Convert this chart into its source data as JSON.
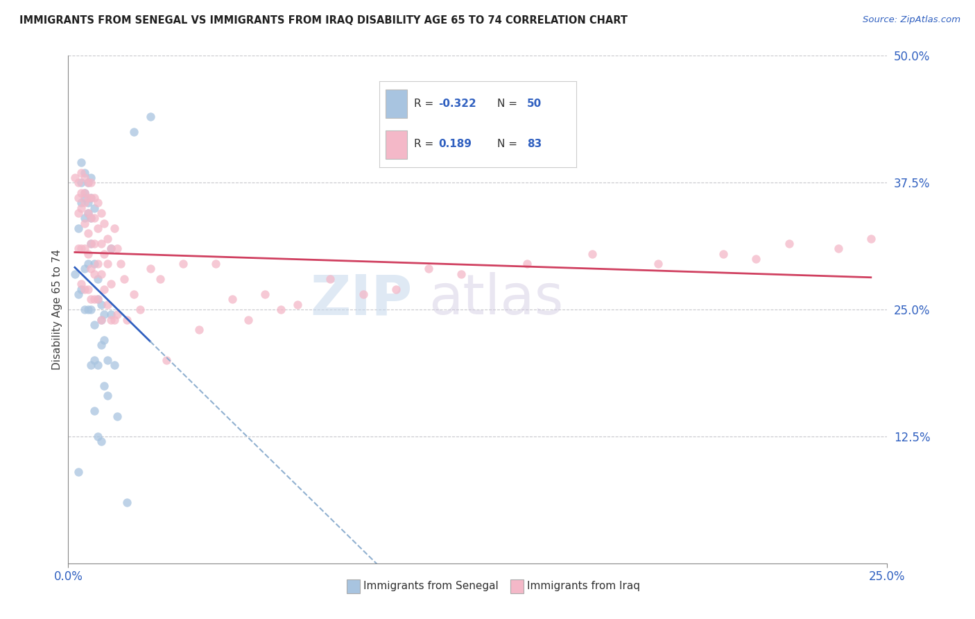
{
  "title": "IMMIGRANTS FROM SENEGAL VS IMMIGRANTS FROM IRAQ DISABILITY AGE 65 TO 74 CORRELATION CHART",
  "source": "Source: ZipAtlas.com",
  "ylabel": "Disability Age 65 to 74",
  "xlim": [
    0.0,
    0.25
  ],
  "ylim": [
    0.0,
    0.5
  ],
  "color_senegal": "#a8c4e0",
  "color_iraq": "#f4b8c8",
  "trendline_senegal": "#3060c0",
  "trendline_iraq": "#d04060",
  "trendline_ext_color": "#90b0d0",
  "watermark_zip": "ZIP",
  "watermark_atlas": "atlas",
  "senegal_x": [
    0.002,
    0.003,
    0.003,
    0.003,
    0.004,
    0.004,
    0.004,
    0.004,
    0.005,
    0.005,
    0.005,
    0.005,
    0.005,
    0.005,
    0.006,
    0.006,
    0.006,
    0.006,
    0.006,
    0.007,
    0.007,
    0.007,
    0.007,
    0.007,
    0.007,
    0.008,
    0.008,
    0.008,
    0.008,
    0.008,
    0.009,
    0.009,
    0.009,
    0.009,
    0.01,
    0.01,
    0.01,
    0.01,
    0.011,
    0.011,
    0.011,
    0.012,
    0.012,
    0.013,
    0.013,
    0.014,
    0.015,
    0.018,
    0.02,
    0.025
  ],
  "senegal_y": [
    0.285,
    0.33,
    0.265,
    0.09,
    0.395,
    0.375,
    0.355,
    0.27,
    0.385,
    0.365,
    0.36,
    0.34,
    0.29,
    0.25,
    0.375,
    0.355,
    0.345,
    0.295,
    0.25,
    0.38,
    0.36,
    0.34,
    0.315,
    0.25,
    0.195,
    0.35,
    0.295,
    0.235,
    0.2,
    0.15,
    0.28,
    0.26,
    0.195,
    0.125,
    0.255,
    0.24,
    0.215,
    0.12,
    0.245,
    0.22,
    0.175,
    0.2,
    0.165,
    0.31,
    0.245,
    0.195,
    0.145,
    0.06,
    0.425,
    0.44
  ],
  "iraq_x": [
    0.002,
    0.003,
    0.003,
    0.003,
    0.003,
    0.004,
    0.004,
    0.004,
    0.004,
    0.004,
    0.005,
    0.005,
    0.005,
    0.005,
    0.005,
    0.005,
    0.006,
    0.006,
    0.006,
    0.006,
    0.006,
    0.006,
    0.007,
    0.007,
    0.007,
    0.007,
    0.007,
    0.007,
    0.008,
    0.008,
    0.008,
    0.008,
    0.008,
    0.009,
    0.009,
    0.009,
    0.009,
    0.01,
    0.01,
    0.01,
    0.01,
    0.011,
    0.011,
    0.011,
    0.012,
    0.012,
    0.012,
    0.013,
    0.013,
    0.013,
    0.014,
    0.014,
    0.015,
    0.015,
    0.016,
    0.017,
    0.018,
    0.02,
    0.022,
    0.025,
    0.028,
    0.03,
    0.035,
    0.04,
    0.045,
    0.05,
    0.055,
    0.06,
    0.065,
    0.07,
    0.08,
    0.09,
    0.1,
    0.11,
    0.12,
    0.14,
    0.16,
    0.18,
    0.2,
    0.21,
    0.22,
    0.235,
    0.245
  ],
  "iraq_y": [
    0.38,
    0.375,
    0.36,
    0.345,
    0.31,
    0.385,
    0.365,
    0.35,
    0.31,
    0.275,
    0.38,
    0.365,
    0.355,
    0.335,
    0.31,
    0.27,
    0.375,
    0.36,
    0.345,
    0.325,
    0.305,
    0.27,
    0.375,
    0.36,
    0.34,
    0.315,
    0.29,
    0.26,
    0.36,
    0.34,
    0.315,
    0.285,
    0.26,
    0.355,
    0.33,
    0.295,
    0.26,
    0.345,
    0.315,
    0.285,
    0.24,
    0.335,
    0.305,
    0.27,
    0.32,
    0.295,
    0.255,
    0.31,
    0.275,
    0.24,
    0.33,
    0.24,
    0.31,
    0.245,
    0.295,
    0.28,
    0.24,
    0.265,
    0.25,
    0.29,
    0.28,
    0.2,
    0.295,
    0.23,
    0.295,
    0.26,
    0.24,
    0.265,
    0.25,
    0.255,
    0.28,
    0.265,
    0.27,
    0.29,
    0.285,
    0.295,
    0.305,
    0.295,
    0.305,
    0.3,
    0.315,
    0.31,
    0.32
  ]
}
